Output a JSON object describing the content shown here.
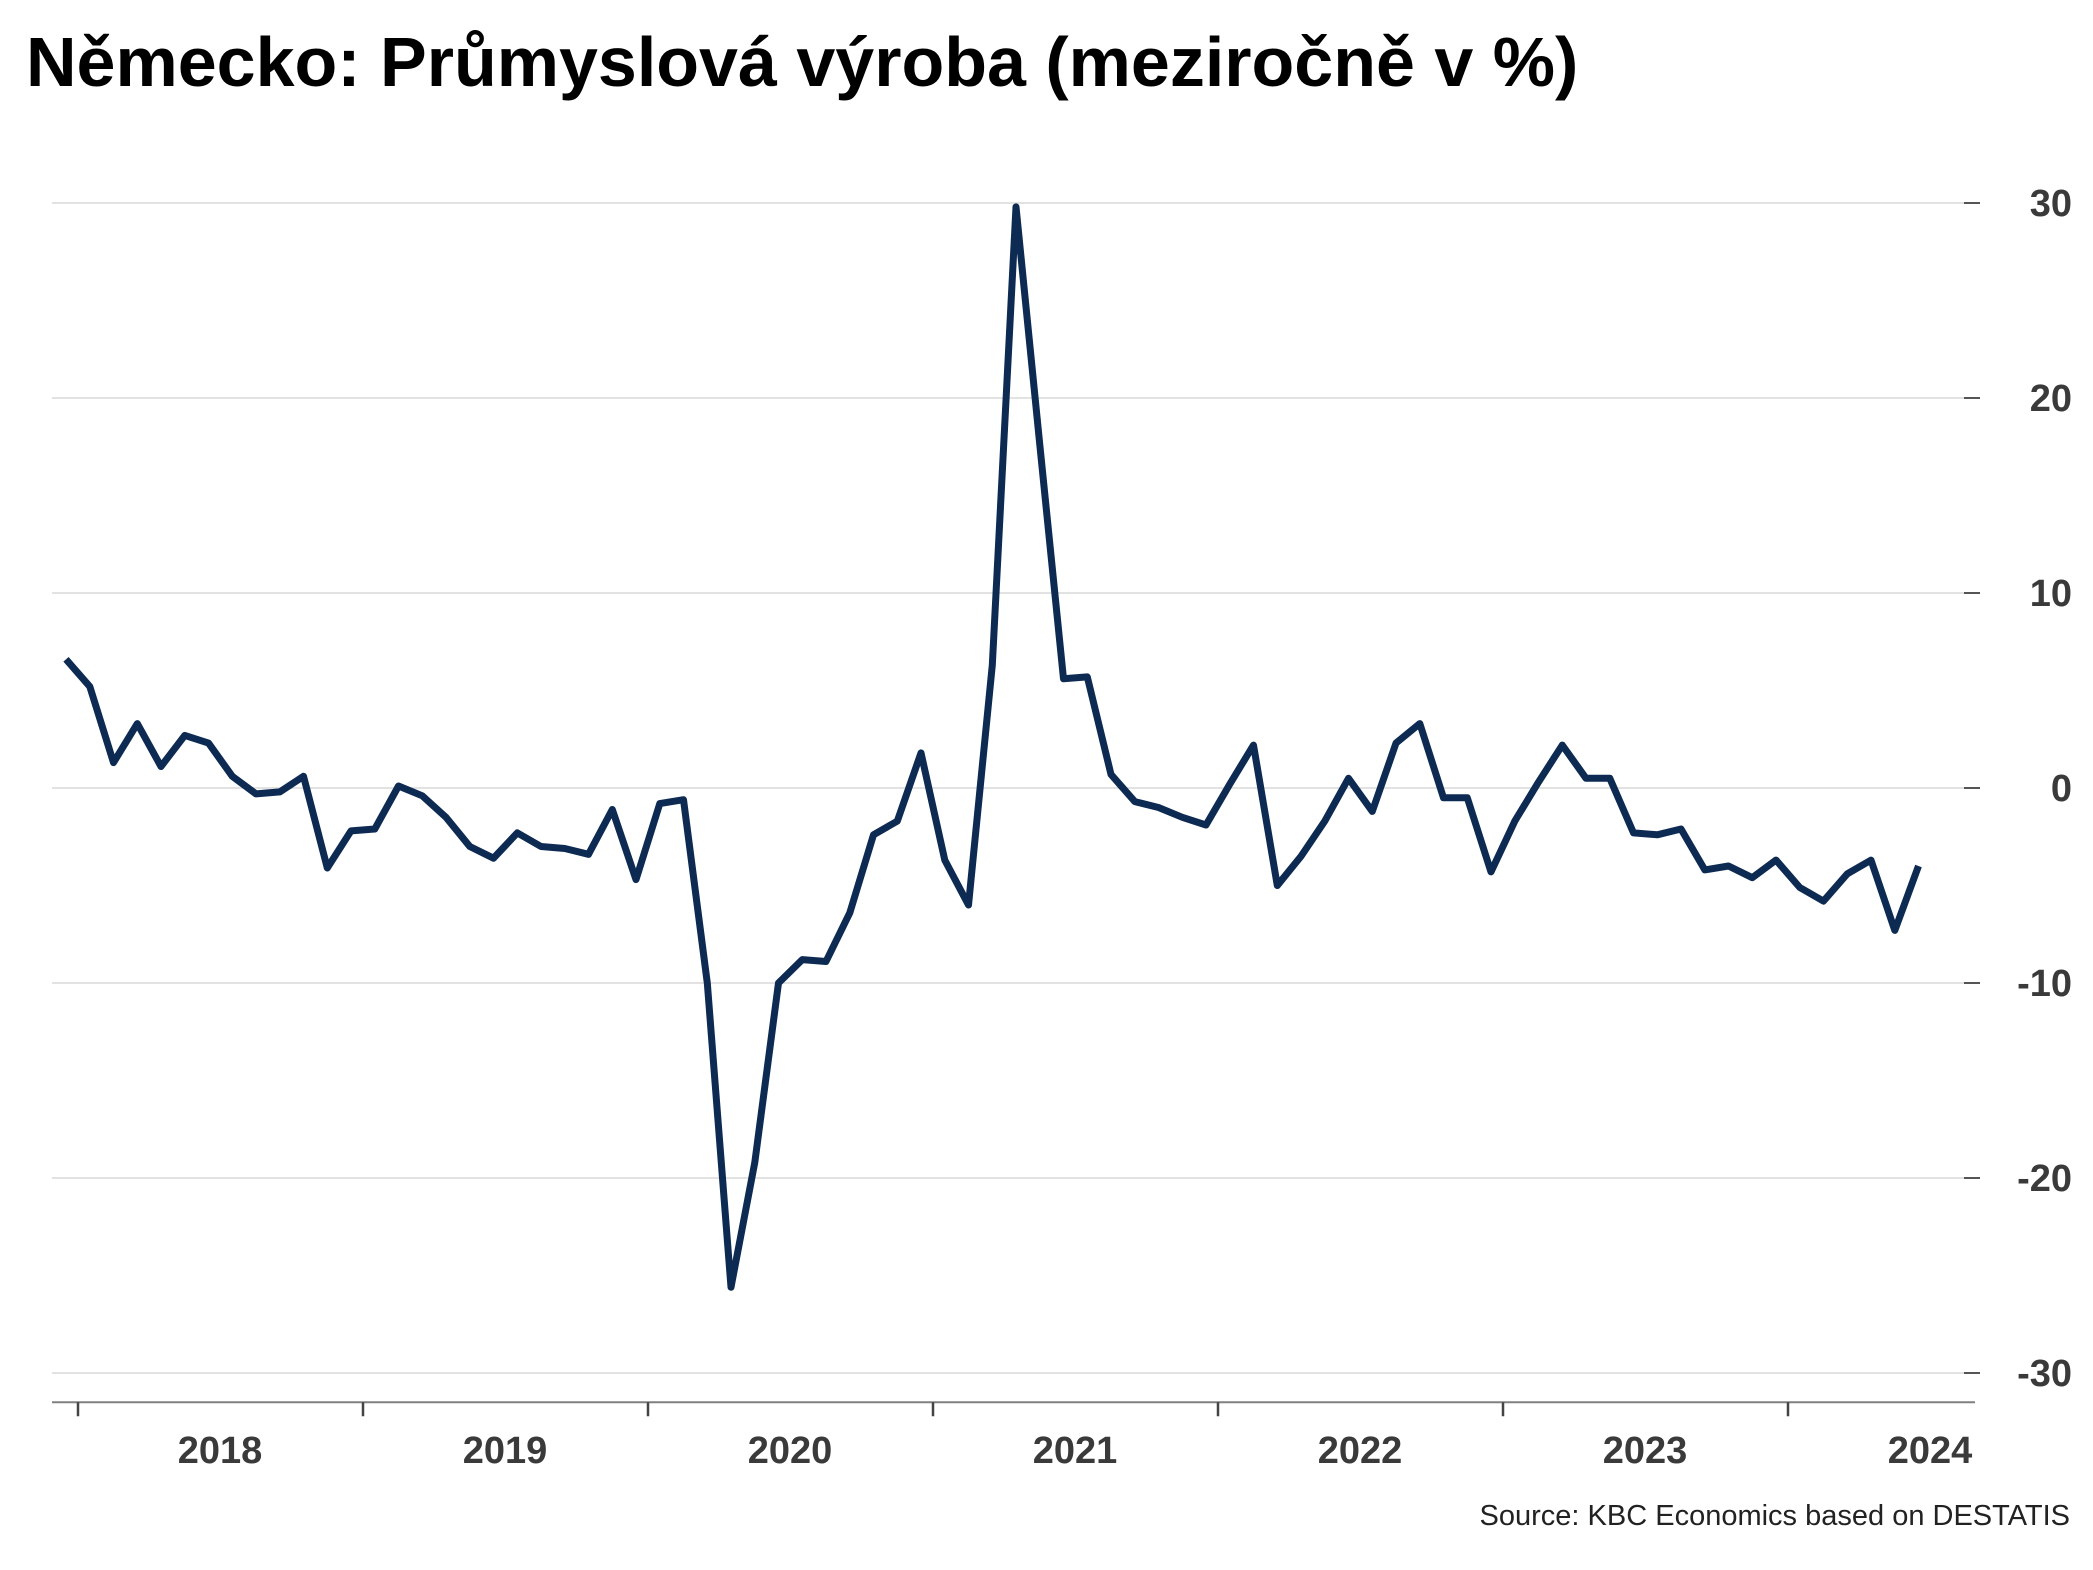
{
  "chart_data": {
    "type": "line",
    "title": "Německo: Průmyslová výroba (meziročně v %)",
    "source": "Source: KBC Economics based on DESTATIS",
    "ylim": [
      -31.5,
      32
    ],
    "yticks": [
      30,
      20,
      10,
      0,
      -10,
      -20,
      -30
    ],
    "y_axis_position": "right",
    "x_start": "2018-01",
    "xticks": [
      "2018",
      "2019",
      "2020",
      "2021",
      "2022",
      "2023",
      "2024"
    ],
    "grid": true,
    "colors": {
      "line": "#0d2a52",
      "grid": "#d9d9d9",
      "axis": "#808080"
    },
    "series": [
      {
        "values": [
          6.6,
          5.2,
          1.3,
          3.3,
          1.1,
          2.7,
          2.3,
          0.6,
          -0.3,
          -0.2,
          0.6,
          -4.1,
          -2.2,
          -2.1,
          0.1,
          -0.4,
          -1.5,
          -3.0,
          -3.6,
          -2.3,
          -3.0,
          -3.1,
          -3.4,
          -1.1,
          -4.7,
          -0.8,
          -0.6,
          -10.0,
          -25.6,
          -19.2,
          -10.0,
          -8.8,
          -8.9,
          -6.4,
          -2.4,
          -1.7,
          1.8,
          -3.7,
          -6.0,
          6.3,
          29.8,
          17.6,
          5.6,
          5.7,
          0.7,
          -0.7,
          -1.0,
          -1.5,
          -1.9,
          0.2,
          2.2,
          -5.0,
          -3.5,
          -1.7,
          0.5,
          -1.2,
          2.3,
          3.3,
          -0.5,
          -0.5,
          -4.3,
          -1.7,
          0.3,
          2.2,
          0.5,
          0.5,
          -2.3,
          -2.4,
          -2.1,
          -4.2,
          -4.0,
          -4.6,
          -3.7,
          -5.1,
          -5.8,
          -4.4,
          -3.7,
          -7.3,
          -4.0
        ]
      }
    ]
  }
}
